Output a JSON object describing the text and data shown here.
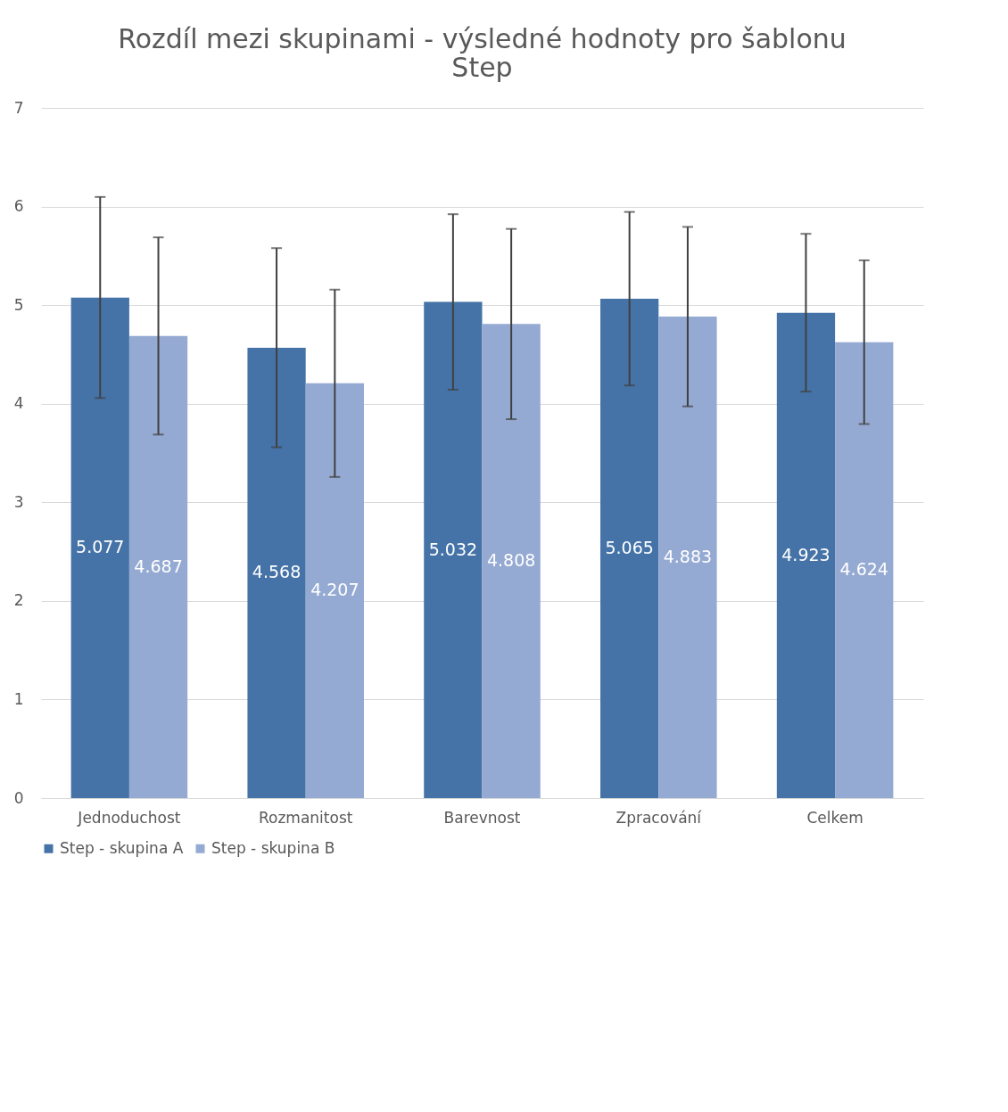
{
  "chart_data": {
    "type": "bar",
    "title": [
      "Rozdíl mezi skupinami - výsledné hodnoty pro šablonu",
      "Step"
    ],
    "categories": [
      "Jednoduchost",
      "Rozmanitost",
      "Barevnost",
      "Zpracování",
      "Celkem"
    ],
    "series": [
      {
        "name": "Step - skupina A",
        "color": "#4573a7",
        "values": [
          5.077,
          4.568,
          5.032,
          5.065,
          4.923
        ],
        "errors": [
          1.02,
          1.01,
          0.89,
          0.88,
          0.8
        ]
      },
      {
        "name": "Step - skupina B",
        "color": "#95aad2",
        "values": [
          4.687,
          4.207,
          4.808,
          4.883,
          4.624
        ],
        "errors": [
          1.0,
          0.95,
          0.965,
          0.91,
          0.83
        ]
      }
    ],
    "ylim": [
      0,
      7
    ],
    "yticks": [
      0,
      1,
      2,
      3,
      4,
      5,
      6,
      7
    ],
    "grid": "y",
    "legend": "bottom",
    "data_labels": true
  }
}
